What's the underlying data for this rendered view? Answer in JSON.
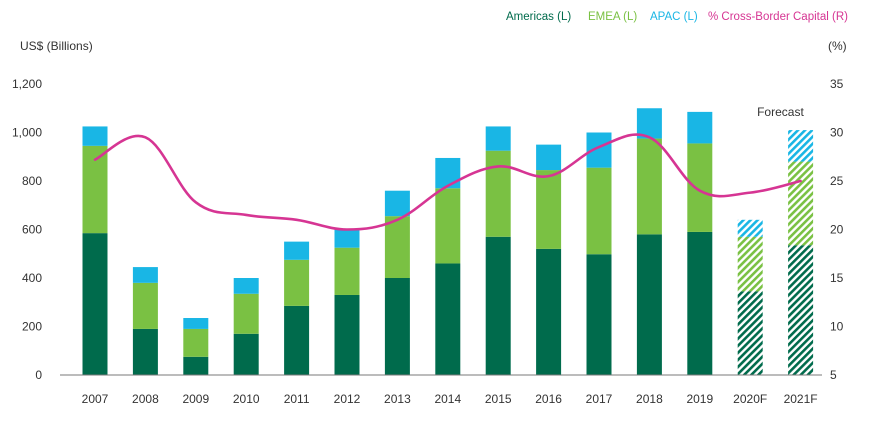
{
  "chart_data": {
    "type": "bar",
    "stacked": true,
    "categories": [
      "2007",
      "2008",
      "2009",
      "2010",
      "2011",
      "2012",
      "2013",
      "2014",
      "2015",
      "2016",
      "2017",
      "2018",
      "2019",
      "2020F",
      "2021F"
    ],
    "forecast_categories": [
      "2020F",
      "2021F"
    ],
    "series": [
      {
        "name": "Americas (L)",
        "color": "#006b4c",
        "axis": "left",
        "values": [
          585,
          190,
          75,
          170,
          285,
          330,
          400,
          460,
          570,
          520,
          498,
          580,
          590,
          345,
          535
        ]
      },
      {
        "name": "EMEA (L)",
        "color": "#7ac143",
        "axis": "left",
        "values": [
          360,
          190,
          115,
          165,
          190,
          195,
          255,
          310,
          355,
          325,
          357,
          395,
          365,
          225,
          345
        ]
      },
      {
        "name": "APAC (L)",
        "color": "#19b6e5",
        "axis": "left",
        "values": [
          80,
          65,
          45,
          65,
          75,
          75,
          105,
          125,
          100,
          105,
          145,
          125,
          130,
          70,
          130
        ]
      }
    ],
    "line_series": {
      "name": "% Cross-Border Capital (R)",
      "color": "#d63593",
      "axis": "right",
      "values": [
        27.2,
        29.5,
        22.8,
        21.5,
        21.0,
        20.0,
        21.0,
        24.5,
        26.5,
        25.5,
        28.5,
        29.5,
        24.0,
        23.8,
        25.0
      ]
    },
    "left_axis": {
      "label": "US$ (Billions)",
      "ylim": [
        0,
        1200
      ],
      "ticks": [
        "0",
        "200",
        "400",
        "600",
        "800",
        "1,000",
        "1,200"
      ]
    },
    "right_axis": {
      "label": "(%)",
      "ylim": [
        5,
        35
      ],
      "ticks": [
        "5",
        "10",
        "15",
        "20",
        "25",
        "30",
        "35"
      ]
    },
    "annotation": "Forecast",
    "legend_position": "top-right",
    "grid": false
  }
}
